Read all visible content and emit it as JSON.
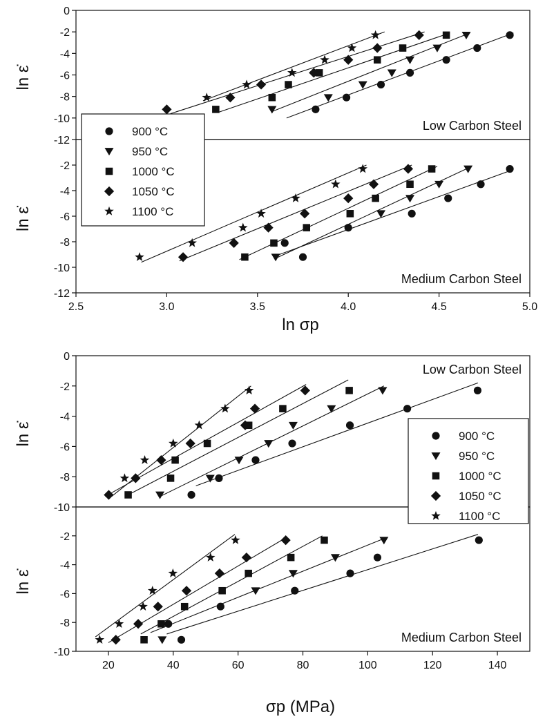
{
  "figure": {
    "top_xlabel": "ln σp",
    "bottom_xlabel": "σp (MPa)",
    "ylabel": "ln ε̇"
  },
  "legend": [
    "900 °C",
    "950 °C",
    "1000 °C",
    "1050 °C",
    "1100 °C"
  ],
  "chart_data": [
    {
      "type": "scatter",
      "panel_label": "Low Carbon Steel",
      "ylabel": "ln ε̇",
      "xlim": [
        2.5,
        5.0
      ],
      "ylim": [
        -12,
        0
      ],
      "yticks": [
        0,
        -2,
        -4,
        -6,
        -8,
        -10,
        -12
      ],
      "series": [
        {
          "name": "900 °C",
          "marker": "circle",
          "points": [
            [
              3.82,
              -9.2
            ],
            [
              3.99,
              -8.1
            ],
            [
              4.18,
              -6.9
            ],
            [
              4.34,
              -5.8
            ],
            [
              4.54,
              -4.6
            ],
            [
              4.71,
              -3.5
            ],
            [
              4.89,
              -2.3
            ]
          ],
          "fit": [
            [
              3.66,
              -10.0
            ],
            [
              4.91,
              -2.1
            ]
          ]
        },
        {
          "name": "950 °C",
          "marker": "triangle-down",
          "points": [
            [
              3.58,
              -9.2
            ],
            [
              3.89,
              -8.1
            ],
            [
              4.08,
              -6.9
            ],
            [
              4.24,
              -5.8
            ],
            [
              4.34,
              -4.6
            ],
            [
              4.49,
              -3.5
            ],
            [
              4.65,
              -2.3
            ]
          ],
          "fit": [
            [
              3.58,
              -9.4
            ],
            [
              4.67,
              -2.1
            ]
          ]
        },
        {
          "name": "1000 °C",
          "marker": "square",
          "points": [
            [
              3.27,
              -9.2
            ],
            [
              3.58,
              -8.1
            ],
            [
              3.67,
              -6.9
            ],
            [
              3.84,
              -5.8
            ],
            [
              4.16,
              -4.6
            ],
            [
              4.3,
              -3.5
            ],
            [
              4.54,
              -2.3
            ]
          ],
          "fit": [
            [
              3.28,
              -9.5
            ],
            [
              4.56,
              -2.1
            ]
          ]
        },
        {
          "name": "1050 °C",
          "marker": "diamond",
          "points": [
            [
              3.0,
              -9.2
            ],
            [
              3.35,
              -8.1
            ],
            [
              3.52,
              -6.9
            ],
            [
              3.81,
              -5.8
            ],
            [
              4.0,
              -4.6
            ],
            [
              4.16,
              -3.5
            ],
            [
              4.39,
              -2.3
            ]
          ],
          "fit": [
            [
              3.02,
              -9.6
            ],
            [
              4.42,
              -2.0
            ]
          ]
        },
        {
          "name": "1100 °C",
          "marker": "star",
          "points": [
            [
              3.22,
              -8.1
            ],
            [
              3.44,
              -6.9
            ],
            [
              3.69,
              -5.8
            ],
            [
              3.87,
              -4.6
            ],
            [
              4.02,
              -3.5
            ],
            [
              4.15,
              -2.3
            ]
          ],
          "fit": [
            [
              3.2,
              -8.4
            ],
            [
              4.2,
              -2.0
            ]
          ]
        }
      ]
    },
    {
      "type": "scatter",
      "panel_label": "Medium Carbon Steel",
      "xlabel": "ln σp",
      "ylabel": "ln ε̇",
      "xlim": [
        2.5,
        5.0
      ],
      "ylim": [
        -12,
        0
      ],
      "xticks": [
        2.5,
        3.0,
        3.5,
        4.0,
        4.5,
        5.0
      ],
      "yticks": [
        -2,
        -4,
        -6,
        -8,
        -10,
        -12
      ],
      "series": [
        {
          "name": "900 °C",
          "marker": "circle",
          "points": [
            [
              3.75,
              -9.2
            ],
            [
              3.65,
              -8.1
            ],
            [
              4.0,
              -6.9
            ],
            [
              4.35,
              -5.8
            ],
            [
              4.55,
              -4.6
            ],
            [
              4.73,
              -3.5
            ],
            [
              4.89,
              -2.3
            ]
          ],
          "fit": [
            [
              3.62,
              -9.0
            ],
            [
              4.9,
              -2.4
            ]
          ]
        },
        {
          "name": "950 °C",
          "marker": "triangle-down",
          "points": [
            [
              3.6,
              -9.2
            ],
            [
              4.18,
              -5.8
            ],
            [
              4.34,
              -4.6
            ],
            [
              4.5,
              -3.5
            ],
            [
              4.66,
              -2.3
            ]
          ],
          "fit": [
            [
              3.6,
              -9.3
            ],
            [
              4.68,
              -2.1
            ]
          ]
        },
        {
          "name": "1000 °C",
          "marker": "square",
          "points": [
            [
              3.43,
              -9.2
            ],
            [
              3.59,
              -8.1
            ],
            [
              3.77,
              -6.9
            ],
            [
              4.01,
              -5.8
            ],
            [
              4.15,
              -4.6
            ],
            [
              4.34,
              -3.5
            ],
            [
              4.46,
              -2.3
            ]
          ],
          "fit": [
            [
              3.4,
              -9.4
            ],
            [
              4.49,
              -2.1
            ]
          ]
        },
        {
          "name": "1050 °C",
          "marker": "diamond",
          "points": [
            [
              3.09,
              -9.2
            ],
            [
              3.37,
              -8.1
            ],
            [
              3.56,
              -6.9
            ],
            [
              3.76,
              -5.8
            ],
            [
              4.0,
              -4.6
            ],
            [
              4.14,
              -3.5
            ],
            [
              4.33,
              -2.3
            ]
          ],
          "fit": [
            [
              3.07,
              -9.5
            ],
            [
              4.35,
              -2.0
            ]
          ]
        },
        {
          "name": "1100 °C",
          "marker": "star",
          "points": [
            [
              2.85,
              -9.2
            ],
            [
              3.14,
              -8.1
            ],
            [
              3.42,
              -6.9
            ],
            [
              3.52,
              -5.8
            ],
            [
              3.71,
              -4.6
            ],
            [
              3.93,
              -3.5
            ],
            [
              4.08,
              -2.3
            ]
          ],
          "fit": [
            [
              2.86,
              -9.6
            ],
            [
              4.1,
              -2.0
            ]
          ]
        }
      ]
    },
    {
      "type": "scatter",
      "panel_label": "Low Carbon Steel",
      "ylabel": "ln ε̇",
      "xlim": [
        10,
        150
      ],
      "ylim": [
        -10,
        0
      ],
      "yticks": [
        0,
        -2,
        -4,
        -6,
        -8,
        -10
      ],
      "series": [
        {
          "name": "900 °C",
          "marker": "circle",
          "points": [
            [
              45.6,
              -9.2
            ],
            [
              54.1,
              -8.1
            ],
            [
              65.4,
              -6.9
            ],
            [
              76.7,
              -5.8
            ],
            [
              94.5,
              -4.6
            ],
            [
              112.2,
              -3.5
            ],
            [
              133.9,
              -2.3
            ]
          ],
          "fit": [
            [
              47,
              -8.6
            ],
            [
              134,
              -1.8
            ]
          ]
        },
        {
          "name": "950 °C",
          "marker": "triangle-down",
          "points": [
            [
              35.9,
              -9.2
            ],
            [
              51.4,
              -8.1
            ],
            [
              60.3,
              -6.9
            ],
            [
              69.4,
              -5.8
            ],
            [
              77.0,
              -4.6
            ],
            [
              88.8,
              -3.5
            ],
            [
              104.6,
              -2.3
            ]
          ],
          "fit": [
            [
              36,
              -9.3
            ],
            [
              105,
              -2.0
            ]
          ]
        },
        {
          "name": "1000 °C",
          "marker": "square",
          "points": [
            [
              26.1,
              -9.2
            ],
            [
              39.2,
              -8.1
            ],
            [
              40.6,
              -6.9
            ],
            [
              50.5,
              -5.8
            ],
            [
              63.3,
              -4.6
            ],
            [
              73.8,
              -3.5
            ],
            [
              94.3,
              -2.3
            ]
          ],
          "fit": [
            [
              27,
              -9.1
            ],
            [
              94,
              -1.6
            ]
          ]
        },
        {
          "name": "1050 °C",
          "marker": "diamond",
          "points": [
            [
              20.1,
              -9.2
            ],
            [
              28.4,
              -8.1
            ],
            [
              36.3,
              -6.9
            ],
            [
              45.3,
              -5.8
            ],
            [
              62.2,
              -4.6
            ],
            [
              65.2,
              -3.5
            ],
            [
              80.7,
              -2.3
            ]
          ],
          "fit": [
            [
              19,
              -9.3
            ],
            [
              81,
              -1.9
            ]
          ]
        },
        {
          "name": "1100 °C",
          "marker": "star",
          "points": [
            [
              25.0,
              -8.1
            ],
            [
              31.2,
              -6.9
            ],
            [
              40.0,
              -5.8
            ],
            [
              48.0,
              -4.6
            ],
            [
              56.0,
              -3.5
            ],
            [
              63.4,
              -2.3
            ]
          ],
          "fit": [
            [
              21,
              -9.3
            ],
            [
              64,
              -2.0
            ]
          ]
        }
      ]
    },
    {
      "type": "scatter",
      "panel_label": "Medium Carbon Steel",
      "xlabel": "σp (MPa)",
      "ylabel": "ln ε̇",
      "xlim": [
        10,
        150
      ],
      "ylim": [
        -10,
        0
      ],
      "xticks": [
        20,
        40,
        60,
        80,
        100,
        120,
        140
      ],
      "yticks": [
        -2,
        -4,
        -6,
        -8,
        -10
      ],
      "series": [
        {
          "name": "900 °C",
          "marker": "circle",
          "points": [
            [
              42.5,
              -9.2
            ],
            [
              38.5,
              -8.1
            ],
            [
              54.6,
              -6.9
            ],
            [
              77.5,
              -5.8
            ],
            [
              94.6,
              -4.6
            ],
            [
              103.0,
              -3.5
            ],
            [
              134.3,
              -2.3
            ]
          ],
          "fit": [
            [
              38,
              -8.8
            ],
            [
              134,
              -1.9
            ]
          ]
        },
        {
          "name": "950 °C",
          "marker": "triangle-down",
          "points": [
            [
              36.6,
              -9.2
            ],
            [
              65.4,
              -5.8
            ],
            [
              77.0,
              -4.6
            ],
            [
              90.0,
              -3.5
            ],
            [
              105.0,
              -2.3
            ]
          ],
          "fit": [
            [
              33,
              -8.7
            ],
            [
              106,
              -2.1
            ]
          ]
        },
        {
          "name": "1000 °C",
          "marker": "square",
          "points": [
            [
              31.0,
              -9.2
            ],
            [
              36.3,
              -8.1
            ],
            [
              43.5,
              -6.9
            ],
            [
              55.1,
              -5.8
            ],
            [
              63.2,
              -4.6
            ],
            [
              76.3,
              -3.5
            ],
            [
              86.6,
              -2.3
            ]
          ],
          "fit": [
            [
              30,
              -8.8
            ],
            [
              86,
              -2.0
            ]
          ]
        },
        {
          "name": "1050 °C",
          "marker": "diamond",
          "points": [
            [
              22.3,
              -9.2
            ],
            [
              29.2,
              -8.1
            ],
            [
              35.3,
              -6.9
            ],
            [
              44.1,
              -5.8
            ],
            [
              54.3,
              -4.6
            ],
            [
              62.6,
              -3.5
            ],
            [
              74.7,
              -2.3
            ]
          ],
          "fit": [
            [
              20,
              -9.4
            ],
            [
              75,
              -2.1
            ]
          ]
        },
        {
          "name": "1100 °C",
          "marker": "star",
          "points": [
            [
              17.3,
              -9.2
            ],
            [
              23.3,
              -8.1
            ],
            [
              30.7,
              -6.9
            ],
            [
              33.6,
              -5.8
            ],
            [
              39.9,
              -4.6
            ],
            [
              51.5,
              -3.5
            ],
            [
              59.2,
              -2.3
            ]
          ],
          "fit": [
            [
              16,
              -9.0
            ],
            [
              59,
              -1.9
            ]
          ]
        }
      ]
    }
  ]
}
